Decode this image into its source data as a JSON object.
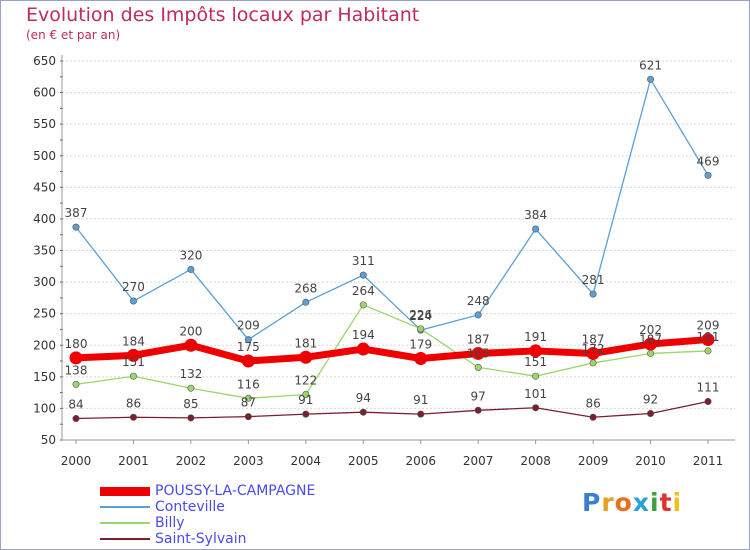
{
  "header": {
    "title": "Evolution des Impôts locaux par Habitant",
    "subtitle": "(en € et par an)"
  },
  "logo": {
    "text": "Proxiti",
    "letter_colors": [
      "#3a7fd0",
      "#e8a020",
      "#e8701c",
      "#2a9fd8",
      "#40a040",
      "#e03030",
      "#f0c020"
    ]
  },
  "chart_data": {
    "type": "line",
    "title": "Evolution des Impôts locaux par Habitant",
    "subtitle": "(en € et par an)",
    "xlabel": "",
    "ylabel": "",
    "x": [
      "2000",
      "2001",
      "2002",
      "2003",
      "2004",
      "2005",
      "2006",
      "2007",
      "2008",
      "2009",
      "2010",
      "2011"
    ],
    "ylim": [
      50,
      650
    ],
    "yticks": [
      "50",
      "100",
      "150",
      "200",
      "250",
      "300",
      "350",
      "400",
      "450",
      "500",
      "550",
      "600",
      "650"
    ],
    "grid": "horizontal",
    "legend_position": "bottom-left",
    "series": [
      {
        "name": "POUSSY-LA-CAMPAGNE",
        "color": "#ee0000",
        "values": [
          180,
          184,
          200,
          175,
          181,
          194,
          179,
          187,
          191,
          187,
          202,
          209
        ],
        "labels": [
          "180",
          "184",
          "200",
          "175",
          "181",
          "194",
          "179",
          "187",
          "191",
          "187",
          "202",
          "209"
        ]
      },
      {
        "name": "Conteville",
        "color": "#5a9fd6",
        "values": [
          387,
          270,
          320,
          209,
          268,
          311,
          224,
          248,
          384,
          281,
          621,
          469
        ],
        "labels": [
          "387",
          "270",
          "320",
          "209",
          "268",
          "311",
          "224",
          "248",
          "384",
          "281",
          "621",
          "469"
        ]
      },
      {
        "name": "Billy",
        "color": "#9ad66a",
        "values": [
          138,
          151,
          132,
          116,
          122,
          264,
          226,
          165,
          151,
          172,
          187,
          191
        ],
        "labels": [
          "138",
          "151",
          "132",
          "116",
          "122",
          "264",
          "226",
          "165",
          "151",
          "172",
          "187",
          "191"
        ]
      },
      {
        "name": "Saint-Sylvain",
        "color": "#7a2030",
        "values": [
          84,
          86,
          85,
          87,
          91,
          94,
          91,
          97,
          101,
          86,
          92,
          111
        ],
        "labels": [
          "84",
          "86",
          "85",
          "87",
          "91",
          "94",
          "91",
          "97",
          "101",
          "86",
          "92",
          "111"
        ]
      }
    ]
  }
}
